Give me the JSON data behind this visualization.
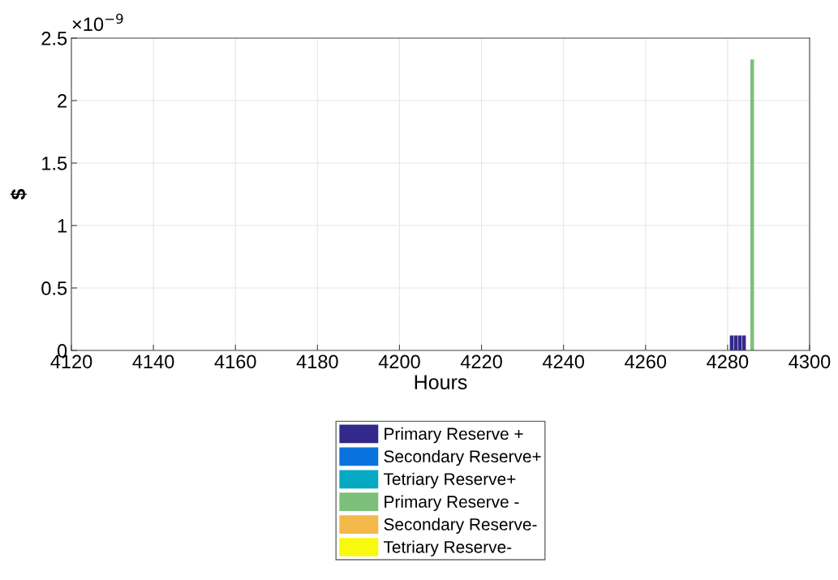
{
  "chart_data": {
    "type": "bar",
    "xlabel": "Hours",
    "ylabel": "$",
    "annotations": [
      "×10$^{−9}$"
    ],
    "x": [
      4281,
      4282,
      4283,
      4284,
      4285,
      4286
    ],
    "series": [
      {
        "name": "Primary Reserve +",
        "color": "#33298a",
        "values": [
          0.12,
          0.12,
          0.12,
          0.12,
          null,
          null
        ]
      },
      {
        "name": "Secondary Reserve+",
        "color": "#0a72dc",
        "values": [
          null,
          null,
          null,
          null,
          null,
          null
        ]
      },
      {
        "name": "Tetriary Reserve+",
        "color": "#06a9c1",
        "values": [
          null,
          null,
          null,
          null,
          null,
          null
        ]
      },
      {
        "name": "Primary Reserve -",
        "color": "#7dbf7a",
        "values": [
          null,
          null,
          null,
          null,
          null,
          2.33
        ]
      },
      {
        "name": "Secondary Reserve-",
        "color": "#f2b84a",
        "values": [
          null,
          null,
          null,
          null,
          null,
          null
        ]
      },
      {
        "name": "Tetriary Reserve-",
        "color": "#f9f80f",
        "values": [
          null,
          null,
          null,
          null,
          null,
          null
        ]
      }
    ],
    "xlim": [
      4120,
      4300
    ],
    "xticks": [
      4120,
      4140,
      4160,
      4180,
      4200,
      4220,
      4240,
      4260,
      4280,
      4300
    ],
    "ylim": [
      0,
      2.5
    ],
    "yticks": [
      0,
      0.5,
      1,
      1.5,
      2,
      2.5
    ],
    "grid": true,
    "legend": "bottom"
  }
}
